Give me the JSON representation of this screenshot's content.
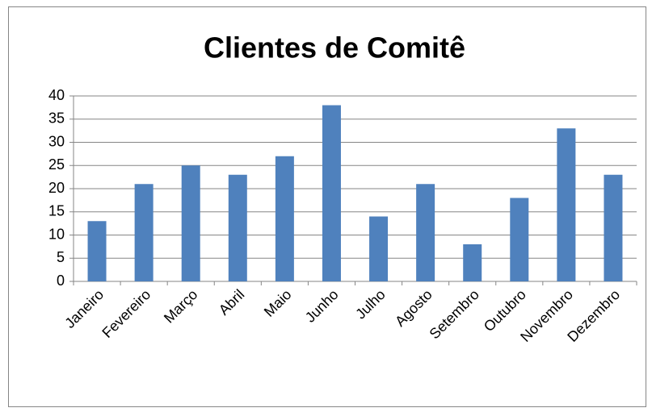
{
  "chart_data": {
    "type": "bar",
    "title": "Clientes de Comitê",
    "categories": [
      "Janeiro",
      "Fevereiro",
      "Março",
      "Abril",
      "Maio",
      "Junho",
      "Julho",
      "Agosto",
      "Setembro",
      "Outubro",
      "Novembro",
      "Dezembro"
    ],
    "values": [
      13,
      21,
      25,
      23,
      27,
      38,
      14,
      21,
      8,
      18,
      33,
      23
    ],
    "color": "#4f81bd",
    "ylim": [
      0,
      40
    ],
    "yticks": [
      0,
      5,
      10,
      15,
      20,
      25,
      30,
      35,
      40
    ],
    "grid": true
  }
}
